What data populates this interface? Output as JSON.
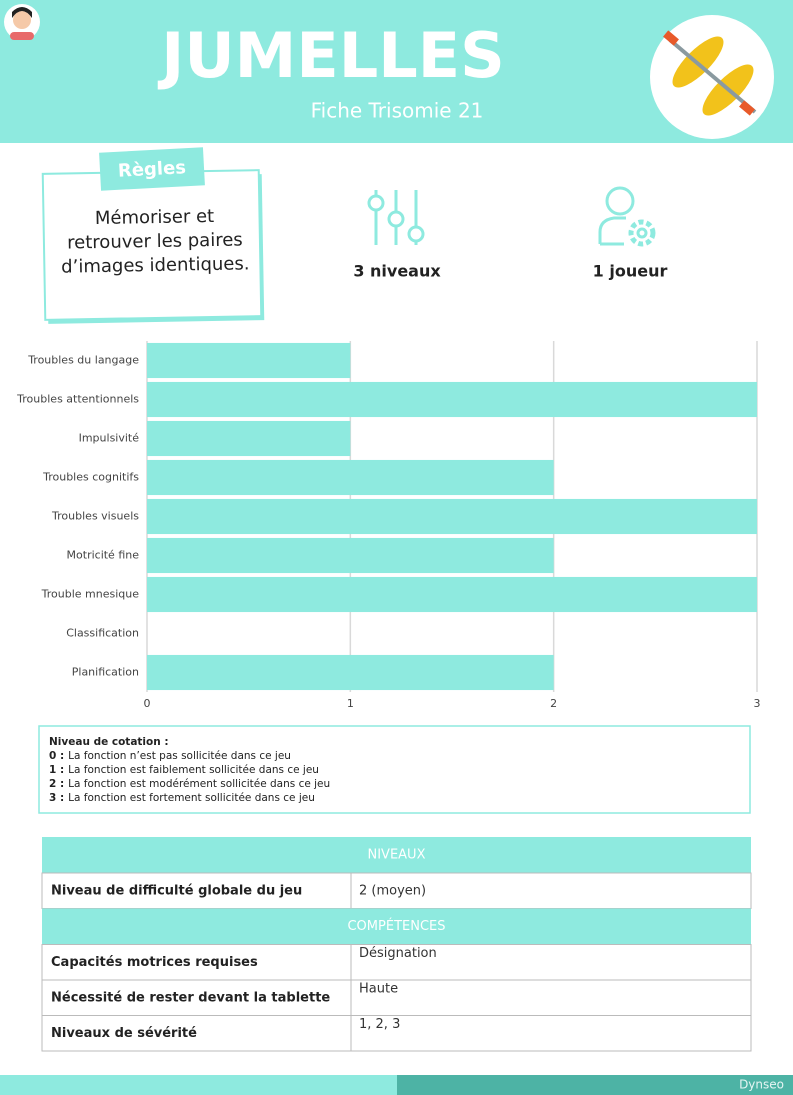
{
  "header": {
    "title": "JUMELLES",
    "subtitle": "Fiche Trisomie 21"
  },
  "rules": {
    "tag": "Règles",
    "lines": [
      "Mémoriser et",
      "retrouver les paires",
      "d’images identiques."
    ]
  },
  "features": [
    "3 niveaux",
    "1 joueur"
  ],
  "chart_data": {
    "type": "bar",
    "orientation": "horizontal",
    "categories": [
      "Troubles du langage",
      "Troubles attentionnels",
      "Impulsivité",
      "Troubles cognitifs",
      "Troubles visuels",
      "Motricité fine",
      "Trouble mnesique",
      "Classification",
      "Planification"
    ],
    "values": [
      1,
      3,
      1,
      2,
      3,
      2,
      3,
      0,
      2
    ],
    "color": "#8eeadf",
    "xlim": [
      0,
      3
    ],
    "xticks": [
      0,
      1,
      2,
      3
    ],
    "grid": true
  },
  "legend_box": {
    "title": "Niveau de cotation :",
    "items": [
      {
        "key": "0 :",
        "text": "La fonction n’est pas sollicitée dans ce jeu"
      },
      {
        "key": "1 :",
        "text": "La fonction est faiblement sollicitée dans ce jeu"
      },
      {
        "key": "2 :",
        "text": "La fonction est modérément sollicitée dans ce jeu"
      },
      {
        "key": "3 :",
        "text": "La fonction est fortement sollicitée dans ce jeu"
      }
    ]
  },
  "table": {
    "sections": [
      {
        "heading": "NIVEAUX",
        "rows": [
          [
            "Niveau de difficulté globale du jeu",
            "2 (moyen)"
          ]
        ]
      },
      {
        "heading": "COMPÉTENCES",
        "rows": [
          [
            "Capacités motrices requises",
            "Désignation"
          ],
          [
            "Nécessité de rester devant la tablette",
            "Haute"
          ],
          [
            "Niveaux de sévérité",
            "1, 2, 3"
          ]
        ]
      }
    ]
  },
  "footer": {
    "brand": "Dynseo"
  }
}
